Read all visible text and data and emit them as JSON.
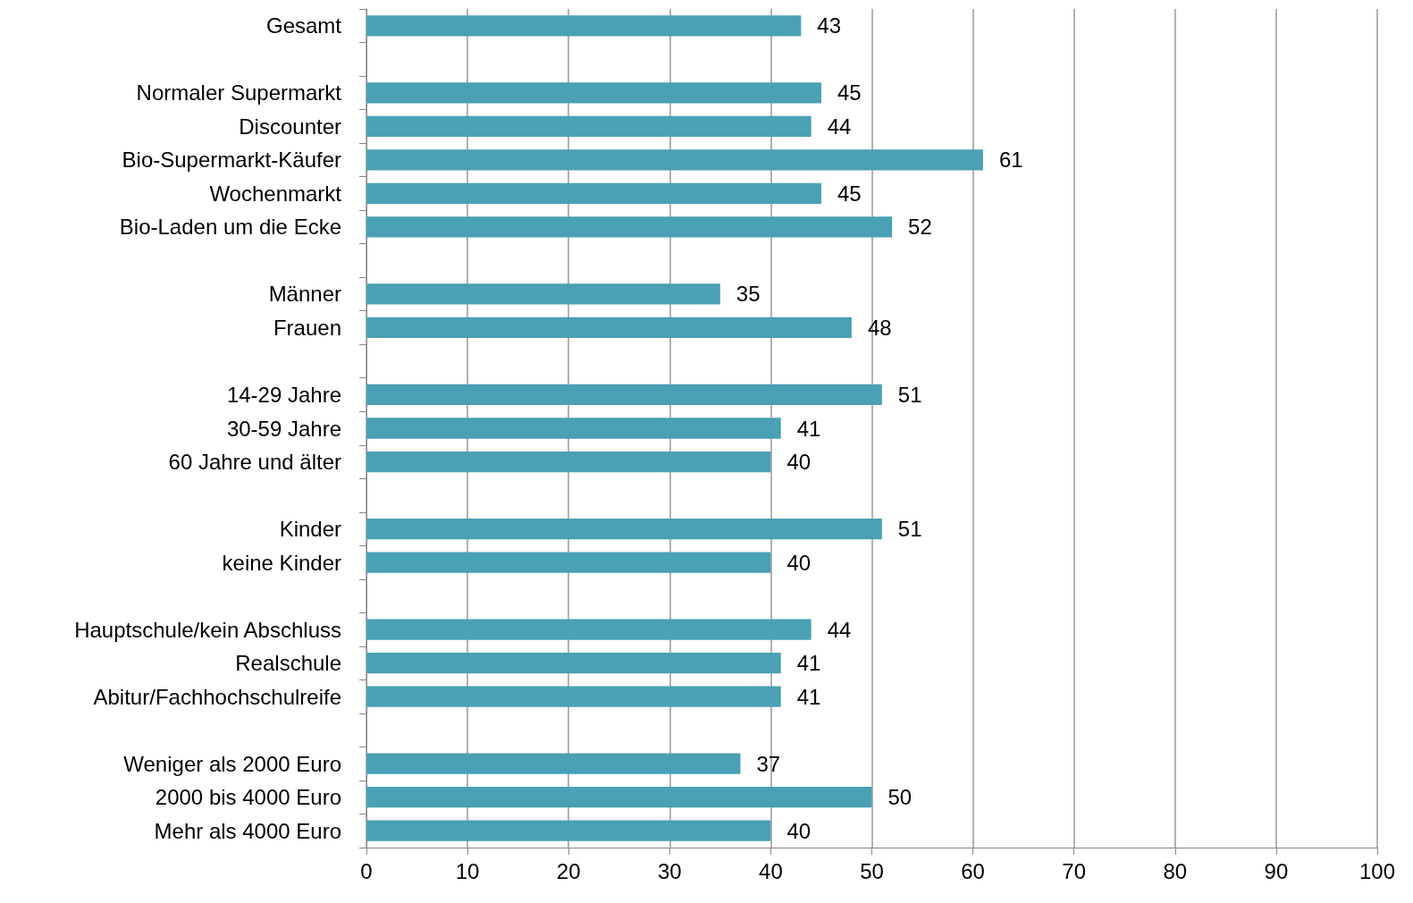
{
  "chart_data": {
    "type": "bar",
    "orientation": "horizontal",
    "categories": [
      "Gesamt",
      null,
      "Normaler Supermarkt",
      "Discounter",
      "Bio-Supermarkt-Käufer",
      "Wochenmarkt",
      "Bio-Laden um die Ecke",
      null,
      "Männer",
      "Frauen",
      null,
      "14-29 Jahre",
      "30-59 Jahre",
      "60 Jahre und älter",
      null,
      "Kinder",
      "keine Kinder",
      null,
      "Hauptschule/kein Abschluss",
      "Realschule",
      "Abitur/Fachhochschulreife",
      null,
      "Weniger als 2000 Euro",
      "2000 bis 4000 Euro",
      "Mehr als 4000 Euro"
    ],
    "values": [
      43,
      null,
      45,
      44,
      61,
      45,
      52,
      null,
      35,
      48,
      null,
      51,
      41,
      40,
      null,
      51,
      40,
      null,
      44,
      41,
      41,
      null,
      37,
      50,
      40
    ],
    "color": "#4aa0b5",
    "xlim": [
      0,
      100
    ],
    "xticks": [
      0,
      10,
      20,
      30,
      40,
      50,
      60,
      70,
      80,
      90,
      100
    ],
    "grid": "x",
    "data_labels": true
  }
}
